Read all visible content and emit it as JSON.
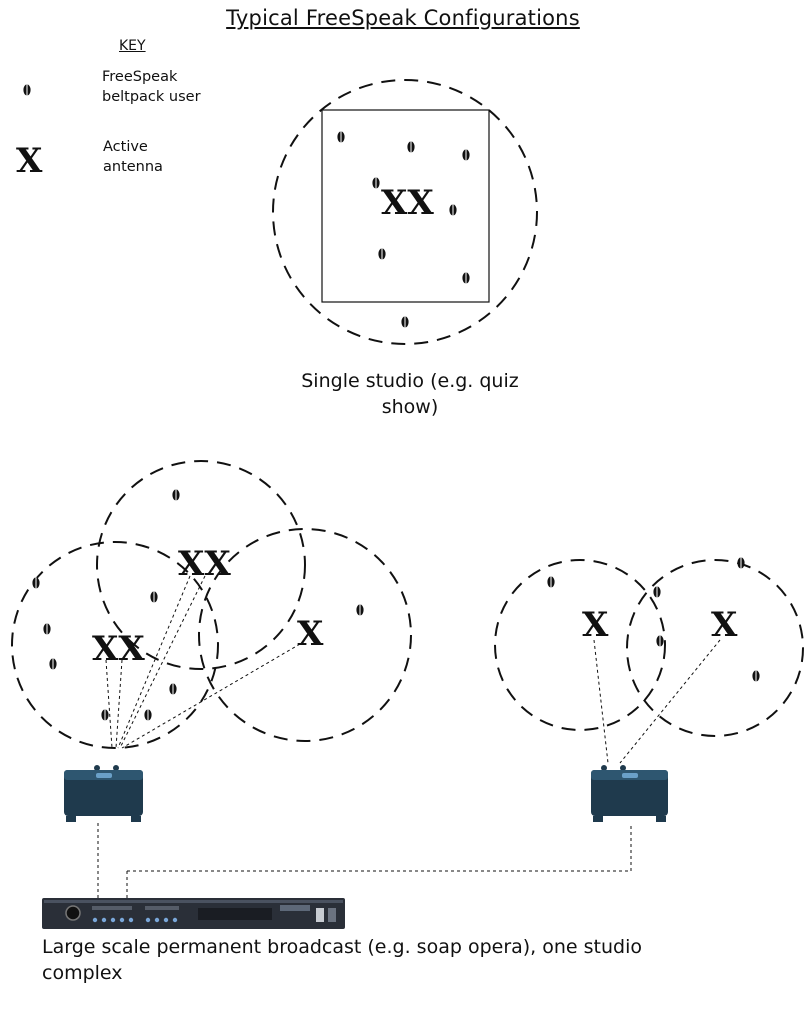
{
  "title": "Typical FreeSpeak Configurations",
  "key": {
    "heading": "KEY",
    "beltpack_label_line1": "FreeSpeak",
    "beltpack_label_line2": "beltpack user",
    "antenna_label_line1": "Active",
    "antenna_label_line2": "antenna",
    "antenna_glyph": "X",
    "antenna_pair_glyph": "XX"
  },
  "single_studio": {
    "caption_line1": "Single studio (e.g. quiz",
    "caption_line2": "show)"
  },
  "large_scale": {
    "caption_line1": "Large scale permanent broadcast (e.g. soap opera), one studio",
    "caption_line2": "complex"
  },
  "colors": {
    "line": "#111111",
    "transceiver_body": "#1f3a4d",
    "rack_body": "#2a2f38"
  }
}
